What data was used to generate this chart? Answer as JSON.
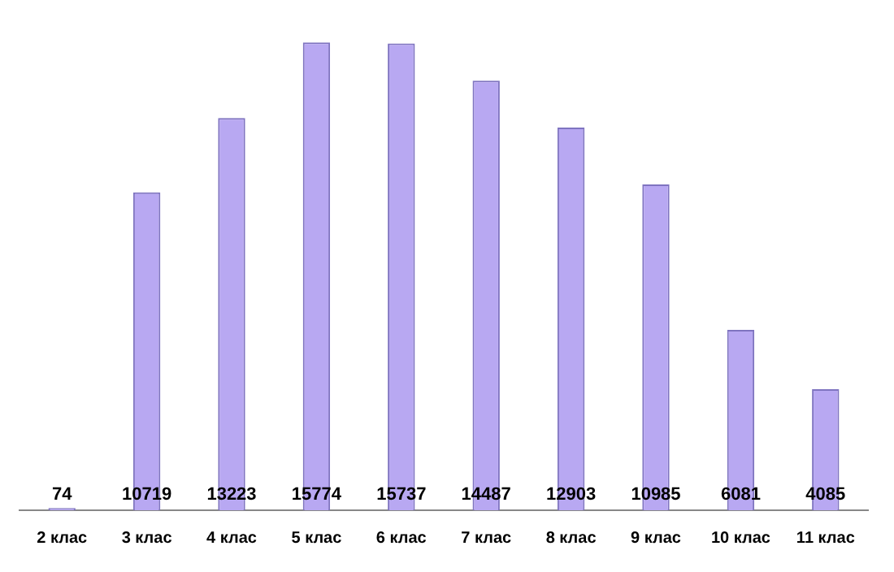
{
  "chart_data": {
    "type": "bar",
    "categories": [
      "2 клас",
      "3 клас",
      "4 клас",
      "5 клас",
      "6 клас",
      "7 клас",
      "8 клас",
      "9 клас",
      "10 клас",
      "11 клас"
    ],
    "values": [
      74,
      10719,
      13223,
      15774,
      15737,
      14487,
      12903,
      10985,
      6081,
      4085
    ],
    "color": "#b8a8f2",
    "data_labels": true,
    "grid": false,
    "legend": false
  }
}
